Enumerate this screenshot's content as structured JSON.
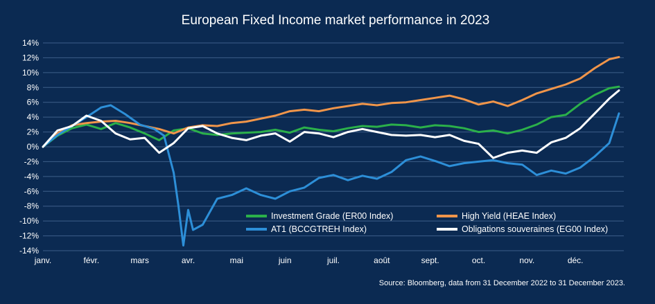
{
  "chart_data": {
    "type": "line",
    "title": "European Fixed Income market performance in 2023",
    "xlabel": "",
    "ylabel": "",
    "ylim": [
      -14,
      14
    ],
    "y_ticks": [
      "14%",
      "12%",
      "10%",
      "8%",
      "6%",
      "4%",
      "2%",
      "0%",
      "-2%",
      "-4%",
      "-6%",
      "-8%",
      "-10%",
      "-12%",
      "-14%"
    ],
    "y_tick_values": [
      14,
      12,
      10,
      8,
      6,
      4,
      2,
      0,
      -2,
      -4,
      -6,
      -8,
      -10,
      -12,
      -14
    ],
    "x_range": [
      0,
      12
    ],
    "months": [
      "janv.",
      "févr.",
      "mars",
      "avr.",
      "mai",
      "juin",
      "juil.",
      "août",
      "sept.",
      "oct.",
      "nov.",
      "déc."
    ],
    "grid": true,
    "legend_position": "bottom-right",
    "source": "Source: Bloomberg, data from 31 December 2022 to 31 December 2023.",
    "colors": {
      "background": "#0b2a52",
      "grid": "#3e5f8a",
      "text": "#ffffff"
    },
    "series": [
      {
        "name": "Investment Grade (ER00 Index)",
        "color": "#2bb04a",
        "x": [
          0,
          0.3,
          0.6,
          0.9,
          1.2,
          1.5,
          1.8,
          2.1,
          2.4,
          2.7,
          3.0,
          3.3,
          3.6,
          3.9,
          4.2,
          4.5,
          4.8,
          5.1,
          5.4,
          5.7,
          6.0,
          6.3,
          6.6,
          6.9,
          7.2,
          7.5,
          7.8,
          8.1,
          8.4,
          8.7,
          9.0,
          9.3,
          9.6,
          9.9,
          10.2,
          10.5,
          10.8,
          11.1,
          11.4,
          11.7,
          11.9
        ],
        "values": [
          0,
          1.5,
          2.5,
          3.0,
          2.4,
          3.2,
          2.6,
          1.8,
          0.9,
          2.2,
          2.5,
          1.8,
          1.6,
          1.8,
          1.9,
          2.0,
          2.3,
          1.9,
          2.6,
          2.3,
          2.1,
          2.5,
          2.8,
          2.7,
          3.0,
          2.9,
          2.6,
          2.9,
          2.8,
          2.5,
          2.0,
          2.2,
          1.8,
          2.3,
          3.0,
          4.0,
          4.3,
          5.8,
          7.0,
          7.9,
          8.1
        ]
      },
      {
        "name": "High Yield (HEAE Index)",
        "color": "#f0954a",
        "x": [
          0,
          0.3,
          0.6,
          0.9,
          1.2,
          1.5,
          1.8,
          2.1,
          2.4,
          2.7,
          3.0,
          3.3,
          3.6,
          3.9,
          4.2,
          4.5,
          4.8,
          5.1,
          5.4,
          5.7,
          6.0,
          6.3,
          6.6,
          6.9,
          7.2,
          7.5,
          7.8,
          8.1,
          8.4,
          8.7,
          9.0,
          9.3,
          9.6,
          9.9,
          10.2,
          10.5,
          10.8,
          11.1,
          11.4,
          11.7,
          11.9
        ],
        "values": [
          0,
          1.8,
          2.9,
          3.2,
          3.4,
          3.5,
          3.2,
          2.8,
          2.4,
          1.8,
          2.6,
          2.9,
          2.8,
          3.2,
          3.4,
          3.8,
          4.2,
          4.8,
          5.0,
          4.8,
          5.2,
          5.5,
          5.8,
          5.6,
          5.9,
          6.0,
          6.3,
          6.6,
          6.9,
          6.4,
          5.7,
          6.1,
          5.5,
          6.3,
          7.2,
          7.8,
          8.4,
          9.2,
          10.6,
          11.8,
          12.1
        ]
      },
      {
        "name": "AT1 (BCCGTREH Index)",
        "color": "#2d8fd8",
        "x": [
          0,
          0.3,
          0.6,
          0.9,
          1.2,
          1.4,
          1.7,
          2.0,
          2.3,
          2.5,
          2.6,
          2.7,
          2.8,
          2.9,
          3.0,
          3.1,
          3.3,
          3.6,
          3.9,
          4.2,
          4.5,
          4.8,
          5.1,
          5.4,
          5.7,
          6.0,
          6.3,
          6.6,
          6.9,
          7.2,
          7.5,
          7.8,
          8.1,
          8.4,
          8.7,
          9.0,
          9.3,
          9.6,
          9.9,
          10.2,
          10.5,
          10.8,
          11.1,
          11.4,
          11.7,
          11.9
        ],
        "values": [
          0,
          1.6,
          2.8,
          4.0,
          5.3,
          5.6,
          4.4,
          3.0,
          2.4,
          1.5,
          -1.0,
          -3.5,
          -8.0,
          -13.3,
          -8.5,
          -11.2,
          -10.5,
          -7.0,
          -6.5,
          -5.6,
          -6.5,
          -7.0,
          -6.0,
          -5.5,
          -4.2,
          -3.8,
          -4.5,
          -3.9,
          -4.3,
          -3.4,
          -1.8,
          -1.3,
          -1.9,
          -2.6,
          -2.2,
          -2.0,
          -1.8,
          -2.2,
          -2.4,
          -3.8,
          -3.2,
          -3.6,
          -2.8,
          -1.3,
          0.5,
          4.5
        ]
      },
      {
        "name": "Obligations souveraines (EG00 Index)",
        "color": "#ffffff",
        "x": [
          0,
          0.3,
          0.6,
          0.9,
          1.2,
          1.5,
          1.8,
          2.1,
          2.4,
          2.7,
          3.0,
          3.3,
          3.6,
          3.9,
          4.2,
          4.5,
          4.8,
          5.1,
          5.4,
          5.7,
          6.0,
          6.3,
          6.6,
          6.9,
          7.2,
          7.5,
          7.8,
          8.1,
          8.4,
          8.7,
          9.0,
          9.3,
          9.6,
          9.9,
          10.2,
          10.5,
          10.8,
          11.1,
          11.4,
          11.7,
          11.9
        ],
        "values": [
          0,
          2.2,
          2.8,
          4.2,
          3.5,
          1.8,
          1.0,
          1.2,
          -0.8,
          0.5,
          2.5,
          2.8,
          1.8,
          1.2,
          0.9,
          1.5,
          1.8,
          0.7,
          2.0,
          1.8,
          1.3,
          2.0,
          2.4,
          2.0,
          1.6,
          1.5,
          1.6,
          1.3,
          1.6,
          0.8,
          0.4,
          -1.5,
          -0.8,
          -0.5,
          -0.8,
          0.6,
          1.2,
          2.5,
          4.5,
          6.5,
          7.6
        ]
      }
    ]
  }
}
